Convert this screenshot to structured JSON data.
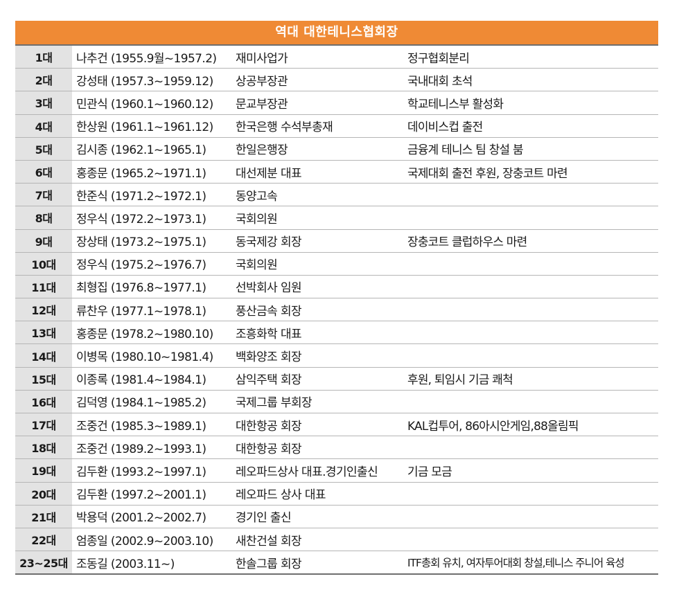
{
  "title": "역대 대한테니스협회장",
  "rows": [
    {
      "gen": "1대",
      "name": "나추건 (1955.9월~1957.2)",
      "job": "재미사업가",
      "ach": "정구협회분리"
    },
    {
      "gen": "2대",
      "name": "강성태 (1957.3~1959.12)",
      "job": "상공부장관",
      "ach": "국내대회 초석"
    },
    {
      "gen": "3대",
      "name": "민관식 (1960.1~1960.12)",
      "job": "문교부장관",
      "ach": "학교테니스부 활성화"
    },
    {
      "gen": "4대",
      "name": "한상원 (1961.1~1961.12)",
      "job": "한국은행 수석부총재",
      "ach": "데이비스컵 출전"
    },
    {
      "gen": "5대",
      "name": "김시종 (1962.1~1965.1)",
      "job": "한일은행장",
      "ach": "금융계 테니스 팀 창설 붐"
    },
    {
      "gen": "6대",
      "name": "홍종문 (1965.2~1971.1)",
      "job": "대선제분 대표",
      "ach": "국제대회 출전 후원, 장충코트 마련"
    },
    {
      "gen": "7대",
      "name": "한준식 (1971.2~1972.1)",
      "job": "동양고속",
      "ach": ""
    },
    {
      "gen": "8대",
      "name": "정우식 (1972.2~1973.1)",
      "job": "국회의원",
      "ach": ""
    },
    {
      "gen": "9대",
      "name": "장상태 (1973.2~1975.1)",
      "job": "동국제강 회장",
      "ach": "장충코트 클럽하우스 마련"
    },
    {
      "gen": "10대",
      "name": "정우식 (1975.2~1976.7)",
      "job": "국회의원",
      "ach": ""
    },
    {
      "gen": "11대",
      "name": "최형집 (1976.8~1977.1)",
      "job": "선박회사 임원",
      "ach": ""
    },
    {
      "gen": "12대",
      "name": "류찬우 (1977.1~1978.1)",
      "job": "풍산금속 회장",
      "ach": ""
    },
    {
      "gen": "13대",
      "name": "홍종문 (1978.2~1980.10)",
      "job": "조흥화학 대표",
      "ach": ""
    },
    {
      "gen": "14대",
      "name": "이병목 (1980.10~1981.4)",
      "job": "백화양조 회장",
      "ach": ""
    },
    {
      "gen": "15대",
      "name": "이종록 (1981.4~1984.1)",
      "job": "삼익주택 회장",
      "ach": "후원, 퇴임시 기금 쾌척"
    },
    {
      "gen": "16대",
      "name": "김덕영 (1984.1~1985.2)",
      "job": "국제그룹 부회장",
      "ach": ""
    },
    {
      "gen": "17대",
      "name": "조중건 (1985.3~1989.1)",
      "job": "대한항공 회장",
      "ach": "KAL컵투어, 86아시안게임,88올림픽"
    },
    {
      "gen": "18대",
      "name": "조중건 (1989.2~1993.1)",
      "job": "대한항공 회장",
      "ach": ""
    },
    {
      "gen": "19대",
      "name": "김두환 (1993.2~1997.1)",
      "job": "레오파드상사 대표.경기인출신",
      "ach": "기금 모금"
    },
    {
      "gen": "20대",
      "name": "김두환 (1997.2~2001.1)",
      "job": "레오파드 상사 대표",
      "ach": ""
    },
    {
      "gen": "21대",
      "name": "박용덕 (2001.2~2002.7)",
      "job": "경기인 출신",
      "ach": ""
    },
    {
      "gen": "22대",
      "name": "엄종일 (2002.9~2003.10)",
      "job": "새찬건설 회장",
      "ach": ""
    },
    {
      "gen": "23~25대",
      "name": "조동길 (2003.11~)",
      "job": "한솔그룹 회장",
      "ach": "ITF총회 유치, 여자투어대회 창설,테니스 주니어 육성"
    }
  ]
}
